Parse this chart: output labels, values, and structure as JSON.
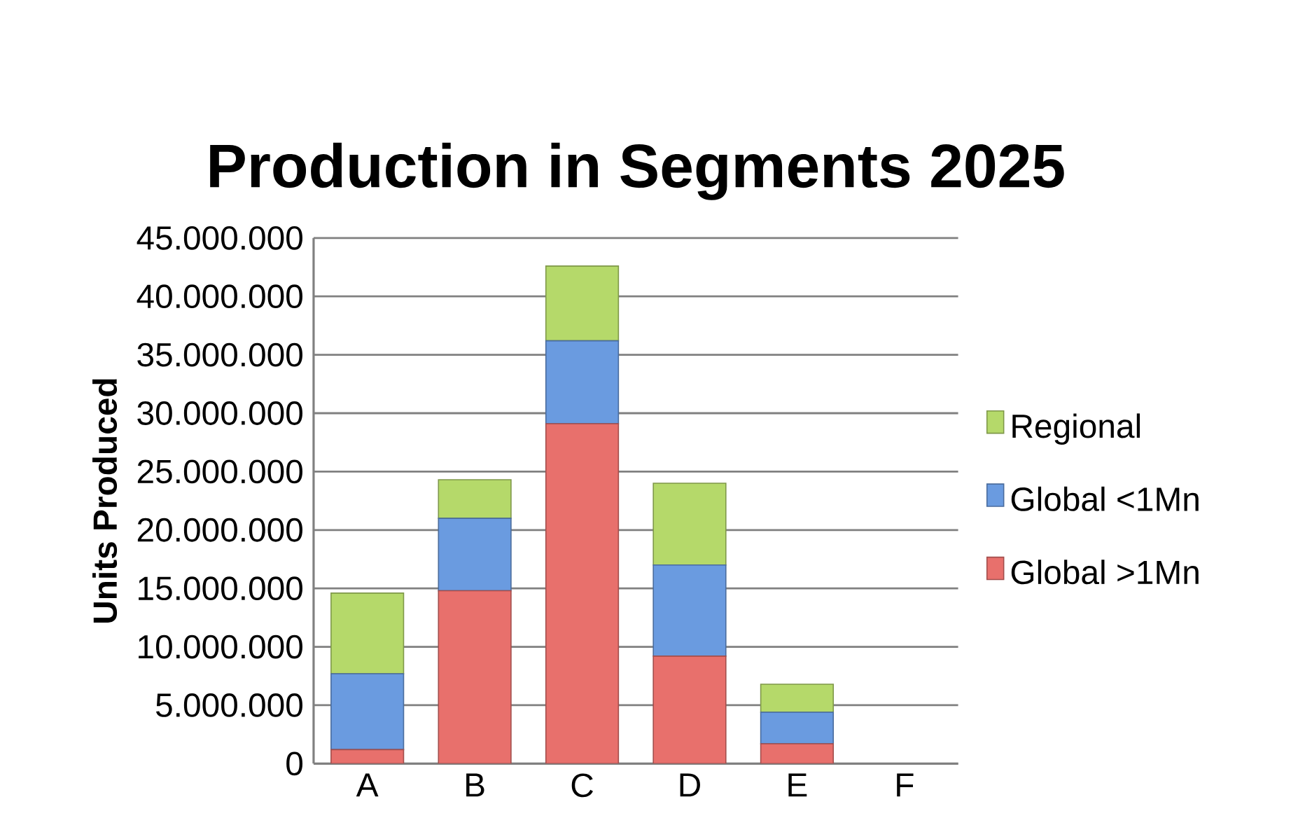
{
  "chart_data": {
    "type": "bar",
    "stacked": true,
    "title": "Production in Segments 2025",
    "ylabel": "Units Produced",
    "categories": [
      "A",
      "B",
      "C",
      "D",
      "E",
      "F"
    ],
    "series": [
      {
        "name": "Global >1Mn",
        "color": "#e8706c",
        "values": [
          1200000,
          14800000,
          29100000,
          9200000,
          1700000,
          0
        ]
      },
      {
        "name": "Global <1Mn",
        "color": "#6a9be0",
        "values": [
          6500000,
          6200000,
          7100000,
          7800000,
          2700000,
          0
        ]
      },
      {
        "name": "Regional",
        "color": "#b5d96a",
        "values": [
          6900000,
          3300000,
          6400000,
          7000000,
          2400000,
          null
        ]
      }
    ],
    "ylim": [
      0,
      45000000
    ],
    "yticks": [
      {
        "value": 0,
        "label": "0"
      },
      {
        "value": 5000000,
        "label": "5.000.000"
      },
      {
        "value": 10000000,
        "label": "10.000.000"
      },
      {
        "value": 15000000,
        "label": "15.000.000"
      },
      {
        "value": 20000000,
        "label": "20.000.000"
      },
      {
        "value": 25000000,
        "label": "25.000.000"
      },
      {
        "value": 30000000,
        "label": "30.000.000"
      },
      {
        "value": 35000000,
        "label": "35.000.000"
      },
      {
        "value": 40000000,
        "label": "40.000.000"
      },
      {
        "value": 45000000,
        "label": "45.000.000"
      }
    ],
    "grid": "y",
    "legend": "right"
  }
}
